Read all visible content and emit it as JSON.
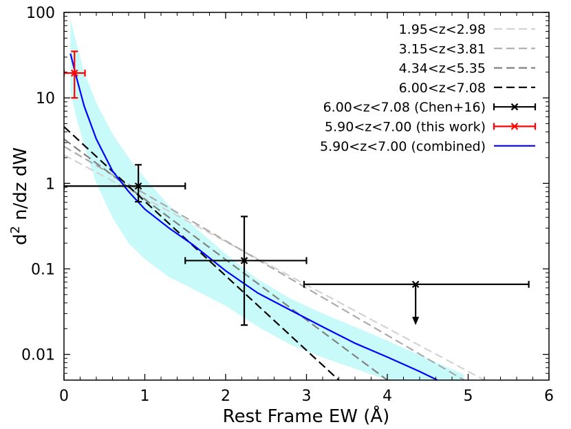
{
  "chart_data": {
    "type": "line",
    "xlabel": "Rest Frame EW (Å)",
    "ylabel_main": "d",
    "ylabel_sup": "2",
    "ylabel_rest": " n/dz dW",
    "xlim": [
      0,
      6
    ],
    "ylim": [
      0.005,
      100
    ],
    "yscale": "log",
    "x_ticks": [
      0,
      1,
      2,
      3,
      4,
      5,
      6
    ],
    "x_tick_labels": [
      "0",
      "1",
      "2",
      "3",
      "4",
      "5",
      "6"
    ],
    "y_ticks": [
      0.01,
      0.1,
      1,
      10,
      100
    ],
    "y_tick_labels": [
      "0.01",
      "0.1",
      "1",
      "10",
      "100"
    ],
    "legend_position": "upper-right",
    "series": [
      {
        "name": "1.95<z<2.98",
        "kind": "line",
        "color": "#d3d3d3",
        "dash": "dashed",
        "x": [
          0,
          5.2
        ],
        "y": [
          2.15,
          0.005
        ]
      },
      {
        "name": "3.15<z<3.81",
        "kind": "line",
        "color": "#ababab",
        "dash": "dashed",
        "x": [
          0,
          4.95
        ],
        "y": [
          2.7,
          0.005
        ]
      },
      {
        "name": "4.34<z<5.35",
        "kind": "line",
        "color": "#808080",
        "dash": "dashed",
        "x": [
          0,
          4.0
        ],
        "y": [
          3.3,
          0.005
        ]
      },
      {
        "name": "6.00<z<7.08",
        "kind": "line",
        "color": "#000000",
        "dash": "dashed",
        "x": [
          0,
          3.4
        ],
        "y": [
          4.6,
          0.005
        ]
      },
      {
        "name": "6.00<z<7.08 (Chen+16)",
        "kind": "errorbar",
        "color": "#000000",
        "points": [
          {
            "x": 0.92,
            "y": 0.93,
            "xerr": [
              0.92,
              0.58
            ],
            "yerr": [
              0.32,
              0.72
            ]
          },
          {
            "x": 2.23,
            "y": 0.125,
            "xerr": [
              0.73,
              0.77
            ],
            "yerr": [
              0.103,
              0.285
            ]
          },
          {
            "x": 4.35,
            "y": 0.066,
            "xerr": [
              1.38,
              1.4
            ],
            "upper_limit_to": 0.022
          }
        ]
      },
      {
        "name": "5.90<z<7.00 (this work)",
        "kind": "errorbar",
        "color": "#ff0000",
        "points": [
          {
            "x": 0.13,
            "y": 19.5,
            "xerr": [
              0.13,
              0.13
            ],
            "yerr": [
              9.5,
              15.5
            ]
          }
        ]
      },
      {
        "name": "5.90<z<7.00 (combined)",
        "kind": "line",
        "color": "#0000ff",
        "dash": "solid",
        "x": [
          0.08,
          0.15,
          0.25,
          0.4,
          0.6,
          0.8,
          1.0,
          1.3,
          1.6,
          2.0,
          2.4,
          2.8,
          3.2,
          3.6,
          4.0,
          4.4,
          4.62
        ],
        "y": [
          33,
          18,
          8,
          3.3,
          1.4,
          0.8,
          0.5,
          0.3,
          0.19,
          0.095,
          0.052,
          0.033,
          0.021,
          0.0135,
          0.0093,
          0.0063,
          0.005
        ]
      }
    ],
    "band": {
      "color": "#c8fafa",
      "x": [
        0.08,
        0.15,
        0.25,
        0.4,
        0.6,
        0.8,
        1.0,
        1.3,
        1.6,
        2.0,
        2.4,
        2.8,
        3.2,
        3.6,
        4.0,
        4.4,
        4.95
      ],
      "upper": [
        85,
        45,
        20,
        8.8,
        3.8,
        2.0,
        1.15,
        0.55,
        0.32,
        0.15,
        0.075,
        0.045,
        0.03,
        0.021,
        0.0145,
        0.0098,
        0.0058
      ],
      "lower": [
        12,
        6,
        2.8,
        1.0,
        0.4,
        0.2,
        0.13,
        0.08,
        0.058,
        0.037,
        0.021,
        0.013,
        0.0092,
        0.0068,
        0.005,
        0.005,
        0.005
      ]
    }
  }
}
